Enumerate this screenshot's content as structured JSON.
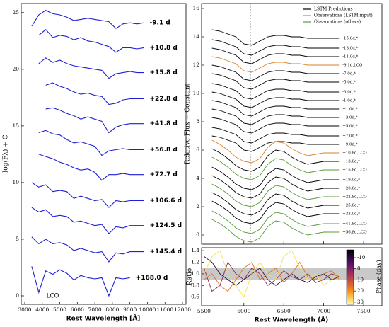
{
  "chart_data": [
    {
      "type": "line",
      "xlabel": "Rest Wavelength [Å]",
      "ylabel": "log(Fλ) + C",
      "x": [
        3400,
        3800,
        4200,
        4600,
        5000,
        5400,
        5800,
        6200,
        6600,
        7000,
        7400,
        7800,
        8200,
        8600,
        9000,
        9400,
        9800
      ],
      "xlim": [
        2800,
        12200
      ],
      "xticks": [
        3000,
        4000,
        5000,
        6000,
        7000,
        8000,
        9000,
        10000,
        11000,
        12000
      ],
      "ylim": [
        -0.75,
        25.8
      ],
      "yticks": [
        0,
        5,
        10,
        15,
        20,
        25
      ],
      "annotation": {
        "text": "LCO",
        "x": 4600,
        "y": 0
      },
      "series": [
        {
          "name": "-9.1 d",
          "color": "#1f1fd6",
          "values": [
            23.8,
            24.8,
            25.2,
            24.9,
            24.8,
            24.6,
            24.3,
            24.4,
            24.5,
            24.4,
            24.3,
            24.2,
            23.6,
            24.0,
            24.1,
            24.0,
            24.1
          ]
        },
        {
          "name": "+10.8 d",
          "color": "#1f1fd6",
          "values": [
            null,
            23.0,
            23.5,
            22.8,
            23.0,
            22.9,
            22.6,
            22.8,
            22.5,
            22.4,
            22.2,
            22.0,
            21.5,
            21.9,
            21.9,
            21.8,
            21.9
          ]
        },
        {
          "name": "+15.8 d",
          "color": "#1f1fd6",
          "values": [
            null,
            20.5,
            21.0,
            20.6,
            20.8,
            20.5,
            20.3,
            20.2,
            20.1,
            20.0,
            19.9,
            19.2,
            19.6,
            19.7,
            19.8,
            19.7,
            19.7
          ]
        },
        {
          "name": "+22.8 d",
          "color": "#1f1fd6",
          "values": [
            null,
            null,
            18.6,
            18.8,
            18.5,
            18.3,
            18.0,
            17.8,
            17.9,
            17.7,
            17.6,
            16.9,
            17.0,
            17.3,
            17.4,
            17.4,
            17.4
          ]
        },
        {
          "name": "+41.8 d",
          "color": "#1f1fd6",
          "values": [
            null,
            null,
            16.5,
            16.6,
            16.4,
            16.1,
            15.9,
            15.6,
            15.8,
            15.6,
            15.4,
            14.4,
            14.9,
            15.1,
            15.2,
            15.2,
            15.2
          ]
        },
        {
          "name": "+56.8 d",
          "color": "#1f1fd6",
          "values": [
            null,
            14.4,
            14.6,
            14.3,
            14.2,
            13.8,
            13.5,
            13.6,
            13.4,
            13.2,
            12.4,
            12.8,
            12.9,
            13.0,
            12.9,
            12.9,
            12.9
          ]
        },
        {
          "name": "+72.7 d",
          "color": "#1f1fd6",
          "values": [
            null,
            12.5,
            12.3,
            12.1,
            11.8,
            11.6,
            11.3,
            11.1,
            11.2,
            10.9,
            10.2,
            10.7,
            10.7,
            10.8,
            10.7,
            10.7,
            10.7
          ]
        },
        {
          "name": "+106.6 d",
          "color": "#1f1fd6",
          "values": [
            10.0,
            9.6,
            9.8,
            9.2,
            9.3,
            9.2,
            8.6,
            8.8,
            8.6,
            8.4,
            8.5,
            7.8,
            8.4,
            8.3,
            8.4,
            8.4,
            8.4
          ]
        },
        {
          "name": "+124.5 d",
          "color": "#1f1fd6",
          "values": [
            7.8,
            7.4,
            7.6,
            7.0,
            7.1,
            7.0,
            6.5,
            6.6,
            6.4,
            6.2,
            6.3,
            5.5,
            6.1,
            6.0,
            6.2,
            6.2,
            6.2
          ]
        },
        {
          "name": "+145.4 d",
          "color": "#1f1fd6",
          "values": [
            5.2,
            4.6,
            5.0,
            4.6,
            4.7,
            4.5,
            4.0,
            4.2,
            4.0,
            3.8,
            3.9,
            3.0,
            3.8,
            3.7,
            3.9,
            3.9,
            3.9
          ]
        },
        {
          "name": "+168.0 d",
          "color": "#1f1fd6",
          "values": [
            2.6,
            0.3,
            2.2,
            1.9,
            2.3,
            2.0,
            1.4,
            1.8,
            1.6,
            1.5,
            1.6,
            0.0,
            1.6,
            1.5,
            1.6,
            null,
            null
          ]
        }
      ]
    },
    {
      "type": "line",
      "ylabel": "Relative Flux + Constant",
      "x": [
        5600,
        5700,
        5800,
        5900,
        6000,
        6100,
        6200,
        6300,
        6400,
        6500,
        6600,
        6700,
        6800,
        6900,
        7000,
        7100,
        7200
      ],
      "xlim": [
        5470,
        7730
      ],
      "xticks": [
        5500,
        6000,
        6500,
        7000,
        7500
      ],
      "ylim": [
        -0.65,
        16.35
      ],
      "yticks": [
        0,
        2,
        4,
        6,
        8,
        10,
        12,
        14,
        16
      ],
      "reference_wavelength": 6080,
      "legend": [
        {
          "name": "LSTM Predictions",
          "color": "#000000"
        },
        {
          "name": "Observations (LSTM input)",
          "color": "#d9822b"
        },
        {
          "name": "Observations (others)",
          "color": "#5a9a3a"
        }
      ],
      "series": [
        {
          "name": "-15.0d,*",
          "color": "#000000",
          "values": [
            14.5,
            14.4,
            14.2,
            14.0,
            13.5,
            13.4,
            13.7,
            14.0,
            14.1,
            14.1,
            14.0,
            14.0,
            13.9,
            13.9,
            13.9,
            13.9,
            13.9
          ]
        },
        {
          "name": "-13.0d,*",
          "color": "#000000",
          "values": [
            13.8,
            13.7,
            13.5,
            13.3,
            12.8,
            12.7,
            13.0,
            13.3,
            13.4,
            13.4,
            13.3,
            13.3,
            13.2,
            13.2,
            13.2,
            13.2,
            13.2
          ]
        },
        {
          "name": "-11.0d,*",
          "color": "#000000",
          "values": [
            13.2,
            13.1,
            12.9,
            12.7,
            12.2,
            12.1,
            12.4,
            12.7,
            12.8,
            12.8,
            12.7,
            12.7,
            12.6,
            12.6,
            12.6,
            12.6,
            12.6
          ]
        },
        {
          "name": "-9.1d,LCO",
          "color": "#d9822b",
          "values": [
            12.6,
            12.5,
            12.3,
            12.1,
            11.6,
            11.5,
            11.8,
            12.1,
            12.2,
            12.2,
            12.1,
            12.1,
            12.0,
            12.0,
            12.0,
            12.0,
            12.0
          ]
        },
        {
          "name": "-7.0d,*",
          "color": "#000000",
          "values": [
            12.0,
            11.9,
            11.7,
            11.5,
            11.0,
            10.9,
            11.2,
            11.5,
            11.6,
            11.6,
            11.5,
            11.5,
            11.4,
            11.4,
            11.4,
            11.4,
            11.4
          ]
        },
        {
          "name": "-5.0d,*",
          "color": "#000000",
          "values": [
            11.4,
            11.3,
            11.1,
            10.9,
            10.4,
            10.3,
            10.6,
            10.9,
            11.0,
            11.0,
            10.9,
            10.9,
            10.8,
            10.8,
            10.8,
            10.8,
            10.8
          ]
        },
        {
          "name": "-3.0d,*",
          "color": "#000000",
          "values": [
            10.7,
            10.6,
            10.4,
            10.2,
            9.7,
            9.6,
            9.9,
            10.2,
            10.3,
            10.3,
            10.2,
            10.2,
            10.1,
            10.1,
            10.1,
            10.1,
            10.1
          ]
        },
        {
          "name": "-1.0d,*",
          "color": "#000000",
          "values": [
            10.1,
            10.0,
            9.8,
            9.6,
            9.1,
            9.0,
            9.3,
            9.6,
            9.7,
            9.7,
            9.6,
            9.6,
            9.5,
            9.5,
            9.5,
            9.5,
            9.5
          ]
        },
        {
          "name": "+1.0d,*",
          "color": "#000000",
          "values": [
            9.5,
            9.4,
            9.2,
            9.0,
            8.5,
            8.4,
            8.7,
            9.0,
            9.1,
            9.1,
            9.0,
            9.0,
            8.9,
            8.9,
            8.9,
            8.9,
            8.9
          ]
        },
        {
          "name": "+3.0d,*",
          "color": "#000000",
          "values": [
            8.9,
            8.8,
            8.6,
            8.4,
            7.9,
            7.8,
            8.1,
            8.4,
            8.5,
            8.5,
            8.4,
            8.4,
            8.3,
            8.3,
            8.3,
            8.3,
            8.3
          ]
        },
        {
          "name": "+5.0d,*",
          "color": "#000000",
          "values": [
            8.3,
            8.2,
            8.0,
            7.8,
            7.3,
            7.2,
            7.5,
            7.8,
            7.9,
            7.9,
            7.8,
            7.8,
            7.7,
            7.7,
            7.7,
            7.7,
            7.7
          ]
        },
        {
          "name": "+7.0d,*",
          "color": "#000000",
          "values": [
            7.6,
            7.5,
            7.3,
            7.1,
            6.6,
            6.5,
            6.8,
            7.1,
            7.2,
            7.2,
            7.1,
            7.1,
            7.0,
            7.0,
            7.0,
            7.0,
            7.0
          ]
        },
        {
          "name": "+9.0d,*",
          "color": "#000000",
          "values": [
            7.0,
            6.9,
            6.7,
            6.5,
            6.0,
            5.9,
            6.2,
            6.5,
            6.6,
            6.6,
            6.5,
            6.5,
            6.4,
            6.4,
            6.4,
            6.4,
            6.4
          ]
        },
        {
          "name": "+10.8d,LCO",
          "color": "#d9822b",
          "values": [
            6.7,
            6.4,
            6.0,
            5.5,
            5.2,
            5.1,
            5.4,
            6.2,
            6.6,
            6.5,
            6.1,
            5.8,
            5.6,
            5.7,
            5.8,
            5.8,
            5.8
          ]
        },
        {
          "name": "+13.0d,*",
          "color": "#000000",
          "values": [
            6.1,
            5.8,
            5.4,
            4.9,
            4.6,
            4.5,
            4.8,
            5.6,
            6.0,
            5.9,
            5.5,
            5.2,
            5.0,
            5.1,
            5.2,
            5.2,
            5.2
          ]
        },
        {
          "name": "+15.8d,LCO",
          "color": "#5a9a3a",
          "values": [
            5.5,
            5.2,
            4.8,
            4.3,
            4.0,
            3.9,
            4.2,
            5.0,
            5.4,
            5.3,
            4.9,
            4.6,
            4.4,
            4.5,
            4.6,
            4.6,
            4.6
          ]
        },
        {
          "name": "+19.0d,*",
          "color": "#000000",
          "values": [
            4.8,
            4.5,
            4.1,
            3.6,
            3.3,
            3.2,
            3.5,
            4.3,
            4.7,
            4.6,
            4.2,
            3.9,
            3.7,
            3.8,
            3.9,
            3.9,
            3.9
          ]
        },
        {
          "name": "+20.0d,*",
          "color": "#000000",
          "values": [
            4.2,
            3.9,
            3.5,
            3.0,
            2.7,
            2.6,
            2.9,
            3.7,
            4.1,
            4.0,
            3.6,
            3.3,
            3.1,
            3.2,
            3.3,
            3.3,
            3.3
          ]
        },
        {
          "name": "+22.8d,LCO",
          "color": "#5a9a3a",
          "values": [
            3.6,
            3.3,
            2.9,
            2.4,
            2.1,
            2.0,
            2.3,
            3.1,
            3.5,
            3.4,
            3.0,
            2.7,
            2.5,
            2.6,
            2.7,
            2.7,
            2.7
          ]
        },
        {
          "name": "+25.0d,*",
          "color": "#000000",
          "values": [
            3.0,
            2.7,
            2.3,
            1.8,
            1.5,
            1.4,
            1.7,
            2.5,
            2.9,
            2.8,
            2.4,
            2.1,
            1.9,
            2.0,
            2.1,
            2.1,
            2.1
          ]
        },
        {
          "name": "+33.0d,*",
          "color": "#000000",
          "values": [
            2.4,
            2.1,
            1.7,
            1.2,
            0.9,
            0.8,
            1.1,
            1.9,
            2.3,
            2.2,
            1.8,
            1.5,
            1.3,
            1.4,
            1.5,
            1.5,
            1.5
          ]
        },
        {
          "name": "+41.8d,LCO",
          "color": "#5a9a3a",
          "values": [
            1.7,
            1.4,
            1.0,
            0.5,
            0.2,
            0.1,
            0.4,
            1.2,
            1.6,
            1.5,
            1.1,
            0.8,
            0.6,
            0.7,
            0.8,
            0.8,
            0.8
          ]
        },
        {
          "name": "+56.8d,LCO",
          "color": "#5a9a3a",
          "values": [
            1.1,
            0.8,
            0.4,
            -0.1,
            -0.4,
            -0.5,
            -0.2,
            0.6,
            1.0,
            0.9,
            0.5,
            0.2,
            0.0,
            0.1,
            0.2,
            0.2,
            0.2
          ]
        }
      ]
    },
    {
      "type": "line",
      "xlabel": "Rest Wavelength (Å)",
      "ylabel": "Ratio",
      "x": [
        5500,
        5600,
        5700,
        5800,
        5900,
        6000,
        6100,
        6200,
        6300,
        6400,
        6500,
        6600,
        6700,
        6800,
        6900,
        7000,
        7100,
        7200
      ],
      "xlim": [
        5470,
        7730
      ],
      "xticks": [
        5500,
        6000,
        6500,
        7000,
        7500
      ],
      "ylim": [
        0.45,
        1.45
      ],
      "yticks": [
        0.6,
        0.8,
        {
          "value": 1,
          "label": "1.0"
        },
        1.2,
        1.4
      ],
      "band": [
        0.9,
        1.1
      ],
      "colorbar": {
        "label": "Phase (day)",
        "lim": [
          -17,
          32
        ],
        "ticks": [
          -10,
          0,
          10,
          20,
          30
        ]
      },
      "series": [
        {
          "color": "#2b0b3f",
          "values": [
            1.3,
            1.2,
            1.0,
            0.9,
            0.8,
            0.9,
            1.0,
            1.1,
            0.9,
            0.8,
            0.9,
            1.0,
            0.9,
            0.85,
            0.95,
            1.0,
            0.9,
            0.95
          ]
        },
        {
          "color": "#8a2a4a",
          "values": [
            1.1,
            0.7,
            0.8,
            1.2,
            1.0,
            0.9,
            1.1,
            1.0,
            0.8,
            0.9,
            1.05,
            0.95,
            0.9,
            1.0,
            0.85,
            0.9,
            1.0,
            0.95
          ]
        },
        {
          "color": "#e07020",
          "values": [
            0.9,
            1.0,
            0.8,
            0.7,
            0.9,
            1.1,
            1.2,
            0.9,
            1.0,
            1.1,
            0.85,
            1.0,
            1.2,
            0.95,
            0.9,
            1.0,
            1.05,
            0.9
          ]
        },
        {
          "color": "#f5e050",
          "values": [
            1.0,
            1.3,
            1.4,
            1.0,
            0.8,
            0.6,
            1.0,
            1.2,
            1.0,
            0.9,
            1.3,
            1.4,
            1.1,
            0.9,
            1.0,
            0.8,
            0.9,
            1.0
          ]
        }
      ]
    }
  ]
}
